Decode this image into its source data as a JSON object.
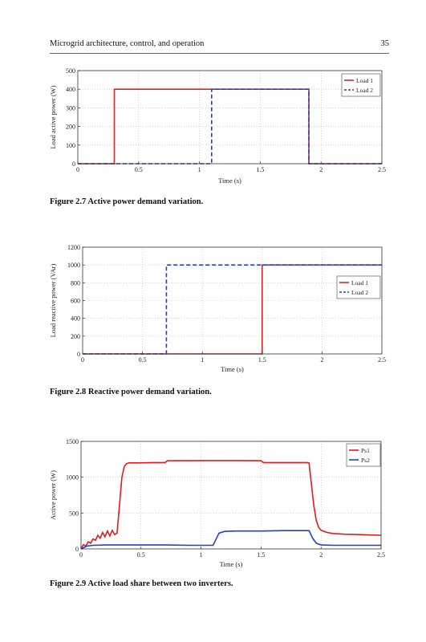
{
  "page": {
    "running_header": "Microgrid architecture, control, and operation",
    "page_number": "35"
  },
  "figures": [
    {
      "caption": "Figure 2.7  Active power demand variation."
    },
    {
      "caption": "Figure 2.8  Reactive power demand variation."
    },
    {
      "caption": "Figure 2.9  Active load share between two inverters."
    }
  ],
  "chart_data": [
    {
      "type": "line",
      "xlabel": "Time (s)",
      "ylabel": "Load  active power (W)",
      "xlim": [
        0,
        2.5
      ],
      "ylim": [
        0,
        500
      ],
      "x_ticks": [
        0,
        0.5,
        1,
        1.5,
        2,
        2.5
      ],
      "x_tick_labels": [
        "0",
        "0.5",
        "1",
        "1.5",
        "2",
        "2.5"
      ],
      "y_ticks": [
        0,
        100,
        200,
        300,
        400,
        500
      ],
      "y_tick_labels": [
        "0",
        "100",
        "200",
        "300",
        "400",
        "500"
      ],
      "grid": true,
      "legend_position": "top-right",
      "series": [
        {
          "name": "Load 1",
          "color": "#d62728",
          "dash": "solid",
          "x": [
            0,
            0.3,
            0.3,
            1.9,
            1.9,
            2.5
          ],
          "y": [
            0,
            0,
            400,
            400,
            0,
            0
          ]
        },
        {
          "name": "Load 2",
          "color": "#1f3fd6",
          "dash": "dashed",
          "x": [
            0,
            1.1,
            1.1,
            1.9,
            1.9,
            2.5
          ],
          "y": [
            0,
            0,
            400,
            400,
            0,
            0
          ]
        }
      ]
    },
    {
      "type": "line",
      "xlabel": "Time (s)",
      "ylabel": "Load reactive power (VAr)",
      "xlim": [
        0,
        2.5
      ],
      "ylim": [
        0,
        1200
      ],
      "x_ticks": [
        0,
        0.5,
        1,
        1.5,
        2,
        2.5
      ],
      "x_tick_labels": [
        "0",
        "0.5",
        "1",
        "1.5",
        "2",
        "2.5"
      ],
      "y_ticks": [
        0,
        200,
        400,
        600,
        800,
        1000,
        1200
      ],
      "y_tick_labels": [
        "0",
        "200",
        "400",
        "600",
        "800",
        "1000",
        "1200"
      ],
      "grid": true,
      "legend_position": "right",
      "series": [
        {
          "name": "Load 1",
          "color": "#d62728",
          "dash": "solid",
          "x": [
            0,
            1.5,
            1.5,
            2.5
          ],
          "y": [
            0,
            0,
            1000,
            1000
          ]
        },
        {
          "name": "Load 2",
          "color": "#1f3fd6",
          "dash": "dashed",
          "x": [
            0,
            0.7,
            0.7,
            2.5
          ],
          "y": [
            0,
            0,
            1000,
            1000
          ]
        }
      ]
    },
    {
      "type": "line",
      "xlabel": "Time (s)",
      "ylabel": "Active power (W)",
      "xlim": [
        0,
        2.5
      ],
      "ylim": [
        0,
        1500
      ],
      "x_ticks": [
        0,
        0.5,
        1,
        1.5,
        2,
        2.5
      ],
      "x_tick_labels": [
        "0",
        "0.5",
        "1",
        "1.5",
        "2",
        "2.5"
      ],
      "y_ticks": [
        0,
        500,
        1000,
        1500
      ],
      "y_tick_labels": [
        "0",
        "500",
        "1000",
        "1500"
      ],
      "grid": true,
      "legend_position": "top-right",
      "series": [
        {
          "name": "Ps1",
          "color": "#e31a1c",
          "dash": "solid",
          "x": [
            0,
            0.02,
            0.04,
            0.06,
            0.08,
            0.1,
            0.12,
            0.14,
            0.16,
            0.18,
            0.2,
            0.22,
            0.24,
            0.26,
            0.28,
            0.3,
            0.32,
            0.34,
            0.36,
            0.38,
            0.4,
            0.45,
            0.5,
            0.6,
            0.7,
            0.72,
            0.9,
            1.1,
            1.3,
            1.5,
            1.52,
            1.7,
            1.88,
            1.9,
            1.92,
            1.94,
            1.96,
            1.98,
            2.0,
            2.05,
            2.1,
            2.2,
            2.3,
            2.4,
            2.5
          ],
          "y": [
            0,
            60,
            40,
            100,
            80,
            140,
            120,
            190,
            150,
            230,
            170,
            250,
            180,
            260,
            200,
            220,
            600,
            1000,
            1150,
            1190,
            1200,
            1200,
            1200,
            1205,
            1205,
            1230,
            1230,
            1232,
            1232,
            1230,
            1205,
            1205,
            1205,
            1200,
            900,
            600,
            400,
            300,
            260,
            230,
            215,
            205,
            200,
            195,
            190
          ]
        },
        {
          "name": "Ps2",
          "color": "#1f3fd6",
          "dash": "solid",
          "x": [
            0,
            0.05,
            0.1,
            0.2,
            0.3,
            0.5,
            0.7,
            0.9,
            1.0,
            1.1,
            1.12,
            1.15,
            1.2,
            1.3,
            1.5,
            1.7,
            1.9,
            1.93,
            1.96,
            2.0,
            2.1,
            2.3,
            2.5
          ],
          "y": [
            0,
            40,
            50,
            55,
            55,
            55,
            55,
            50,
            50,
            50,
            120,
            220,
            245,
            250,
            250,
            255,
            255,
            150,
            80,
            55,
            50,
            50,
            50
          ]
        }
      ]
    }
  ]
}
